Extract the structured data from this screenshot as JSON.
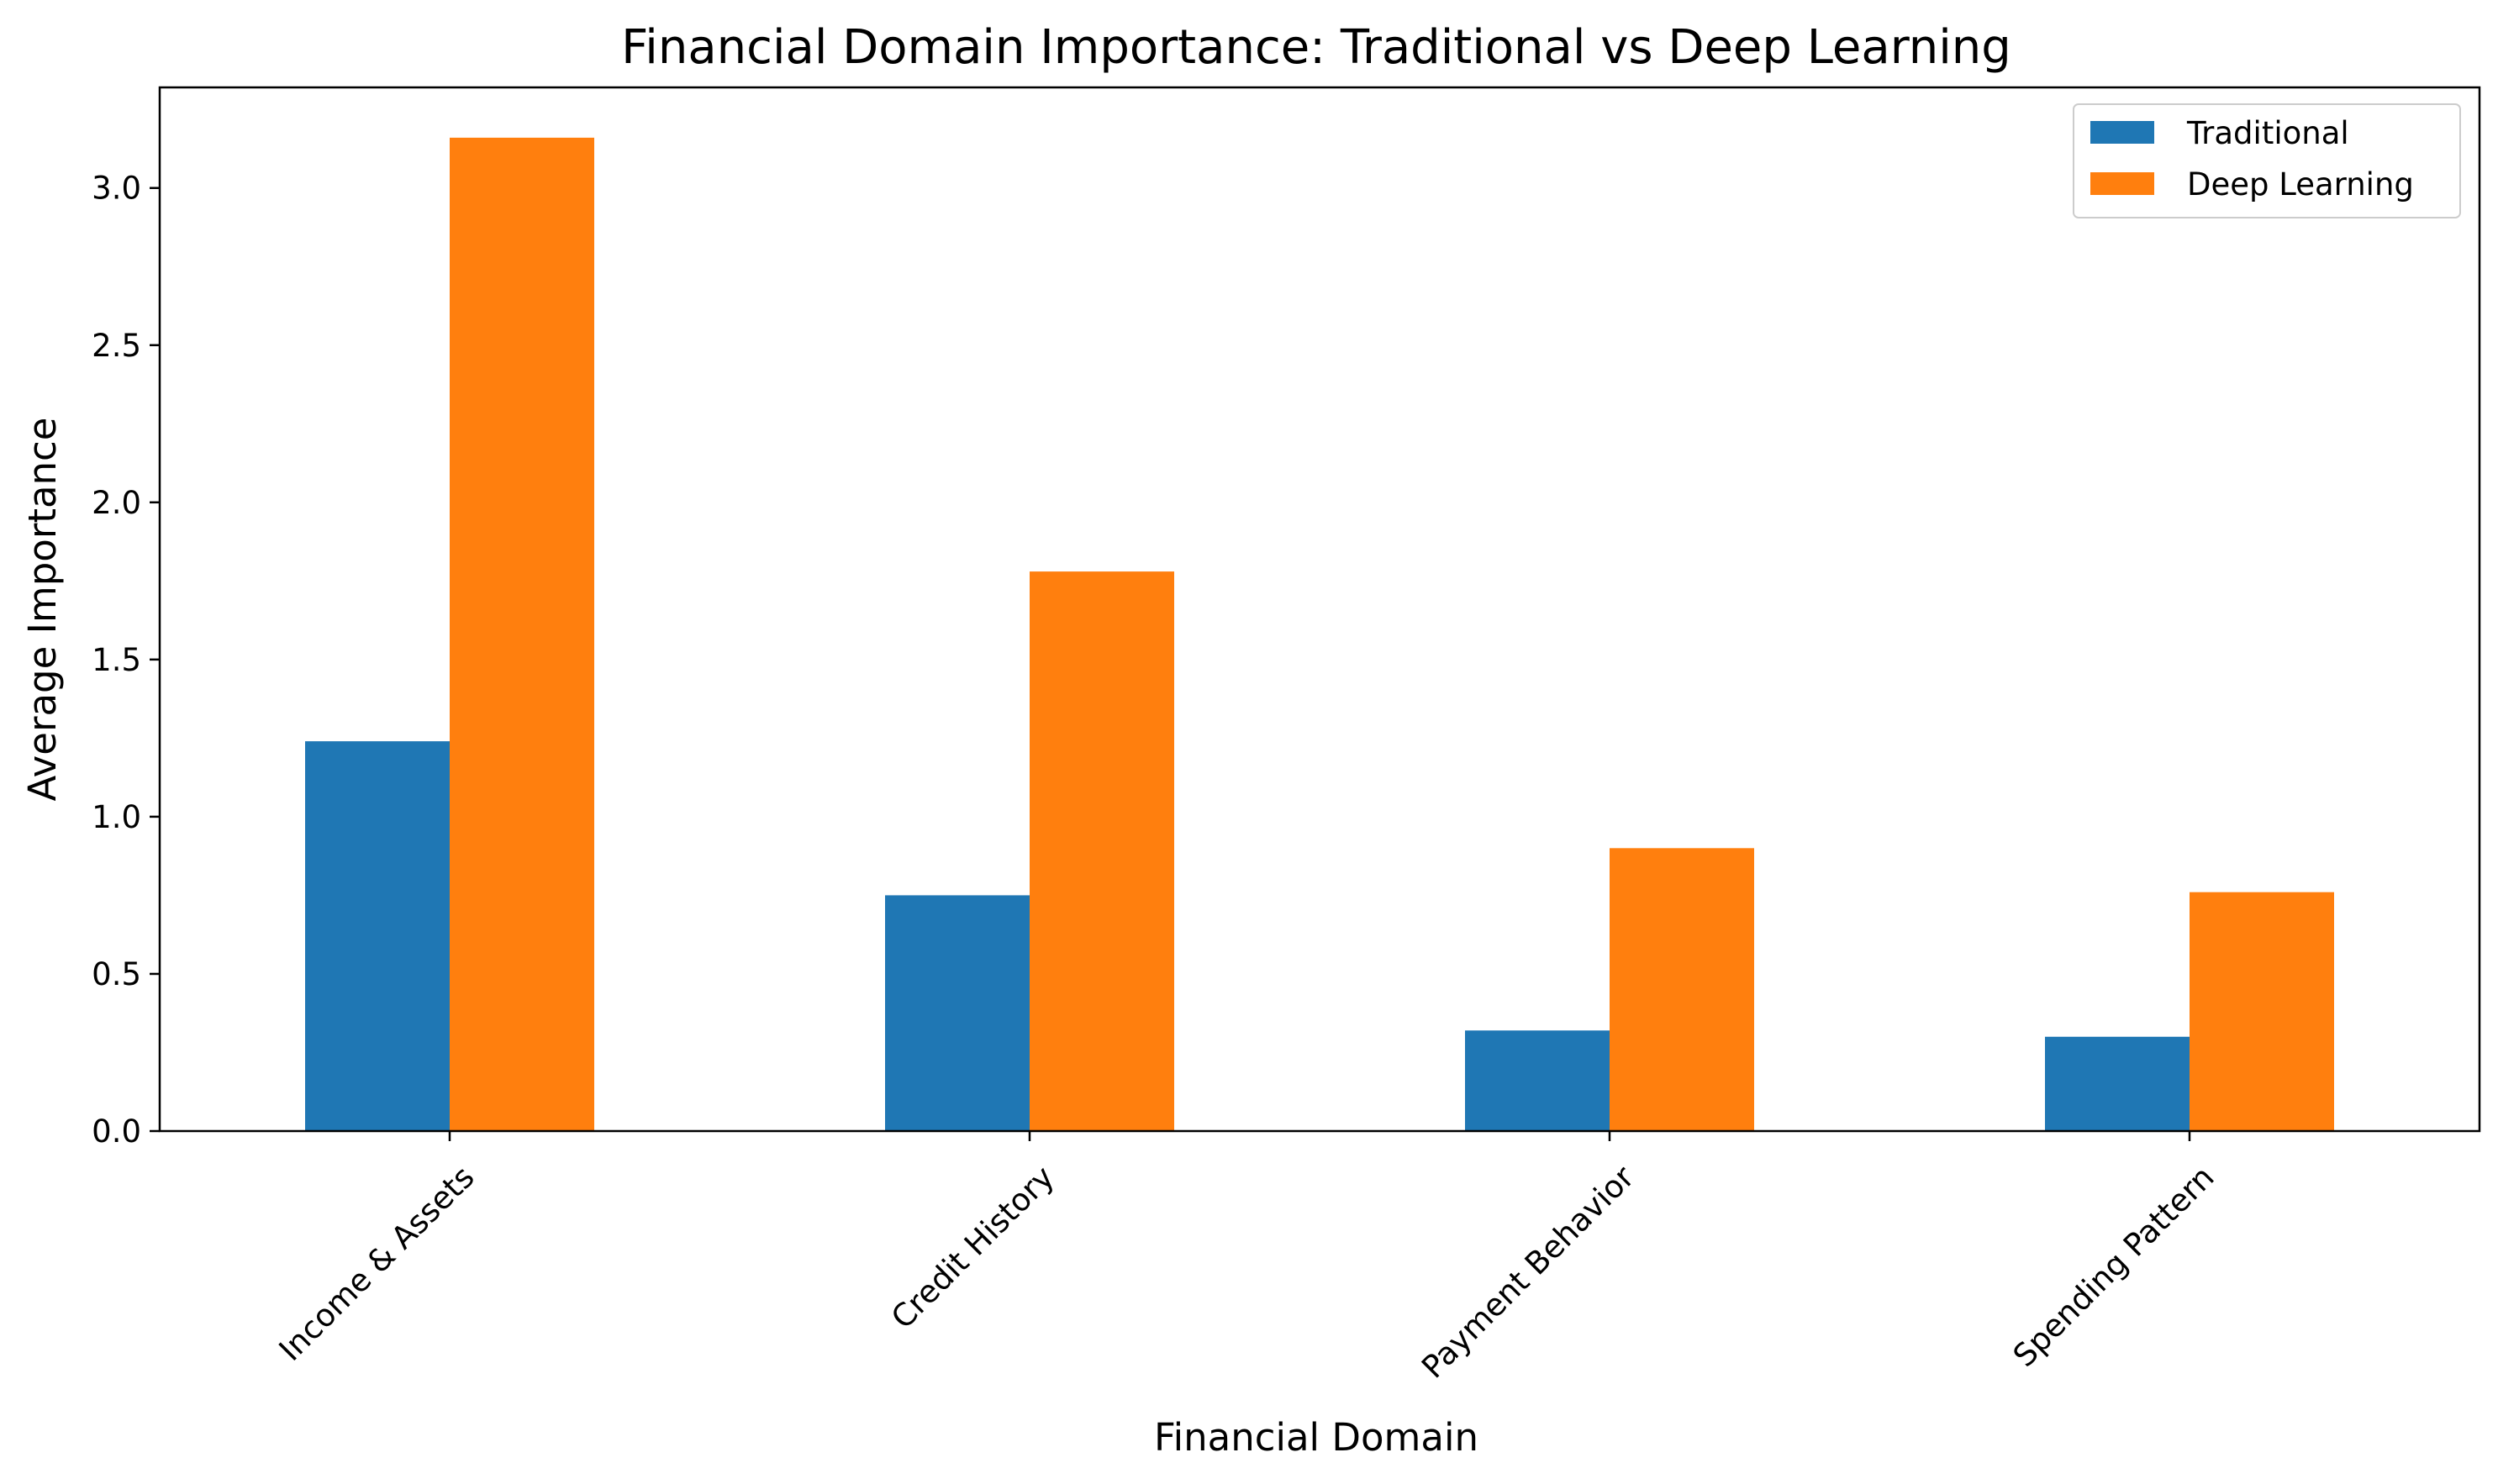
{
  "chart_data": {
    "type": "bar",
    "title": "Financial Domain Importance: Traditional vs Deep Learning",
    "xlabel": "Financial Domain",
    "ylabel": "Average Importance",
    "categories": [
      "Income & Assets",
      "Credit History",
      "Payment Behavior",
      "Spending Pattern"
    ],
    "series": [
      {
        "name": "Traditional",
        "color": "#1f77b4",
        "values": [
          1.24,
          0.75,
          0.32,
          0.3
        ]
      },
      {
        "name": "Deep Learning",
        "color": "#ff7f0e",
        "values": [
          3.16,
          1.78,
          0.9,
          0.76
        ]
      }
    ],
    "ylim": [
      0,
      3.32
    ],
    "yticks": [
      "0.0",
      "0.5",
      "1.0",
      "1.5",
      "2.0",
      "2.5",
      "3.0"
    ],
    "grid": false,
    "legend_position": "top-right"
  }
}
